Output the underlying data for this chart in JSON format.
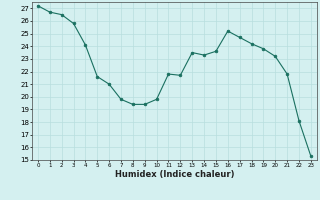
{
  "x": [
    0,
    1,
    2,
    3,
    4,
    5,
    6,
    7,
    8,
    9,
    10,
    11,
    12,
    13,
    14,
    15,
    16,
    17,
    18,
    19,
    20,
    21,
    22,
    23
  ],
  "y": [
    27.2,
    26.7,
    26.5,
    25.8,
    24.1,
    21.6,
    21.0,
    19.8,
    19.4,
    19.4,
    19.8,
    21.8,
    21.7,
    23.5,
    23.3,
    23.6,
    25.2,
    24.7,
    24.2,
    23.8,
    23.2,
    21.8,
    18.1,
    15.3
  ],
  "xlabel": "Humidex (Indice chaleur)",
  "ylim": [
    15,
    27.5
  ],
  "xlim": [
    -0.5,
    23.5
  ],
  "yticks": [
    15,
    16,
    17,
    18,
    19,
    20,
    21,
    22,
    23,
    24,
    25,
    26,
    27
  ],
  "xticks": [
    0,
    1,
    2,
    3,
    4,
    5,
    6,
    7,
    8,
    9,
    10,
    11,
    12,
    13,
    14,
    15,
    16,
    17,
    18,
    19,
    20,
    21,
    22,
    23
  ],
  "line_color": "#1a7060",
  "marker_color": "#1a7060",
  "bg_color": "#d4f0f0",
  "grid_color": "#b8dede"
}
